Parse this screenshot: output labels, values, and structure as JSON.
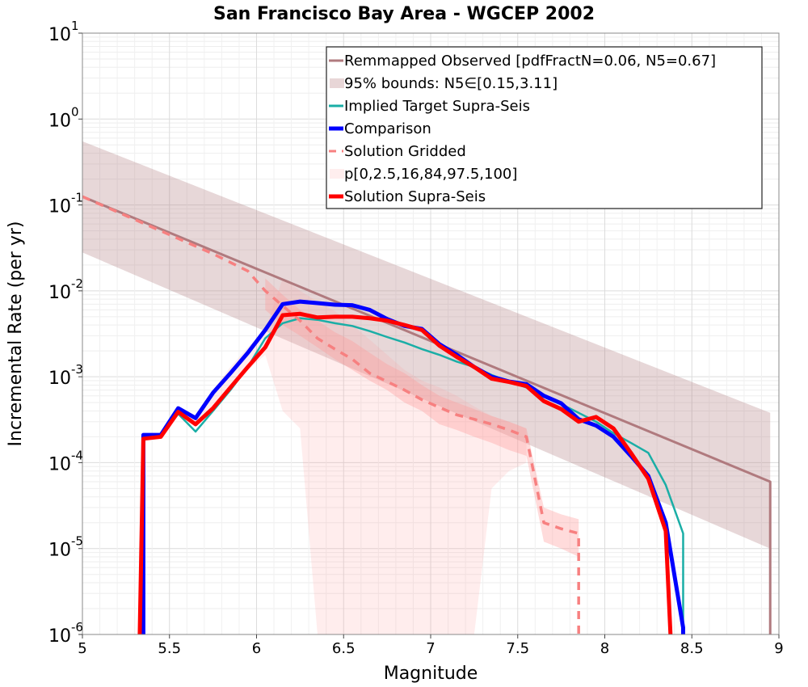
{
  "chart_data": {
    "type": "line",
    "title": "San Francisco Bay Area - WGCEP 2002",
    "xlabel": "Magnitude",
    "ylabel": "Incremental Rate (per yr)",
    "xlim": [
      5,
      9
    ],
    "ylim": [
      1e-06,
      10
    ],
    "yscale": "log",
    "grid": true,
    "legend_position": "top-right",
    "x_ticks": [
      "5",
      "5.5",
      "6",
      "6.5",
      "7",
      "7.5",
      "8",
      "8.5",
      "9"
    ],
    "y_ticks": [
      {
        "base": "10",
        "exp": "1"
      },
      {
        "base": "10",
        "exp": "0"
      },
      {
        "base": "10",
        "exp": "-1"
      },
      {
        "base": "10",
        "exp": "-2"
      },
      {
        "base": "10",
        "exp": "-3"
      },
      {
        "base": "10",
        "exp": "-4"
      },
      {
        "base": "10",
        "exp": "-5"
      },
      {
        "base": "10",
        "exp": "-6"
      }
    ],
    "bands": [
      {
        "name": "95% bounds: N5∈[0.15,3.11]",
        "color": "#b07a7e",
        "opacity": 0.3,
        "x": [
          5.0,
          8.95
        ],
        "lower": [
          0.028,
          1e-05
        ],
        "upper": [
          0.55,
          0.00038
        ]
      },
      {
        "name": "p[0,2.5,16,84,97.5,100]",
        "color": "#ff9999",
        "opacity": 0.18,
        "x": [
          5.35,
          5.45,
          5.55,
          5.65,
          5.75,
          5.85,
          5.95,
          6.05,
          6.15,
          6.25,
          6.35,
          6.45,
          6.55,
          6.65,
          6.75,
          6.85,
          6.95,
          7.05,
          7.15,
          7.25,
          7.35,
          7.45,
          7.55
        ],
        "lower": [
          0.00018,
          0.00019,
          0.00037,
          0.00026,
          0.00042,
          0.0008,
          0.0012,
          0.0018,
          0.0004,
          0.00025,
          1e-06,
          1e-06,
          1e-06,
          1e-06,
          1e-06,
          1e-06,
          1e-06,
          1e-06,
          1e-06,
          1e-06,
          5e-05,
          8e-05,
          0.0001
        ],
        "upper": [
          0.00021,
          0.00021,
          0.00041,
          0.00034,
          0.0007,
          0.0013,
          0.0022,
          0.0035,
          0.014,
          0.01,
          0.0075,
          0.0058,
          0.004,
          0.0027,
          0.0018,
          0.0012,
          0.0009,
          0.00075,
          0.0006,
          0.00045,
          0.00035,
          0.0003,
          0.00025
        ]
      },
      {
        "name": "",
        "color": "#ff9999",
        "opacity": 0.35,
        "x": [
          6.05,
          6.15,
          6.25,
          6.35,
          6.45,
          6.55,
          6.65,
          6.75,
          6.85,
          6.95,
          7.05,
          7.15,
          7.25,
          7.35,
          7.45,
          7.55,
          7.65,
          7.75,
          7.85
        ],
        "lower": [
          0.006,
          0.004,
          0.003,
          0.0022,
          0.0016,
          0.0012,
          0.0009,
          0.0007,
          0.0005,
          0.0004,
          0.00028,
          0.00024,
          0.0002,
          0.00017,
          0.00014,
          0.00012,
          1.2e-05,
          1e-05,
          8e-06
        ],
        "upper": [
          0.014,
          0.009,
          0.006,
          0.0045,
          0.0033,
          0.0026,
          0.0019,
          0.0014,
          0.0011,
          0.0008,
          0.0006,
          0.0005,
          0.00042,
          0.00035,
          0.0003,
          0.00025,
          3e-05,
          2.5e-05,
          2.2e-05
        ]
      }
    ],
    "series": [
      {
        "name": "Remmapped Observed [pdfFractN=0.06, N5=0.67]",
        "color": "#b07a7e",
        "width": 3,
        "dash": "",
        "x": [
          5.0,
          8.95,
          8.95
        ],
        "y": [
          0.125,
          6e-05,
          1e-07
        ]
      },
      {
        "name": "Implied Target Supra-Seis",
        "color": "#1aaea6",
        "width": 2.5,
        "dash": "",
        "x": [
          5.35,
          5.45,
          5.55,
          5.65,
          5.75,
          5.85,
          5.95,
          6.05,
          6.15,
          6.25,
          6.35,
          6.45,
          6.55,
          6.65,
          6.75,
          6.85,
          6.95,
          7.05,
          7.15,
          7.25,
          7.35,
          7.45,
          7.55,
          7.65,
          7.75,
          7.85,
          7.95,
          8.05,
          8.15,
          8.25,
          8.35,
          8.45,
          8.45
        ],
        "y": [
          0.0002,
          0.0002,
          0.00037,
          0.00023,
          0.0004,
          0.0007,
          0.0013,
          0.0028,
          0.0042,
          0.0048,
          0.0046,
          0.0042,
          0.0039,
          0.0034,
          0.0029,
          0.0025,
          0.0021,
          0.0018,
          0.0015,
          0.0013,
          0.00105,
          0.00088,
          0.00075,
          0.0006,
          0.00048,
          0.00038,
          0.0003,
          0.00022,
          0.00017,
          0.00013,
          5.5e-05,
          1.5e-05,
          1e-07
        ]
      },
      {
        "name": "Comparison",
        "color": "#0000ff",
        "width": 5,
        "dash": "",
        "x": [
          5.35,
          5.35,
          5.45,
          5.55,
          5.65,
          5.75,
          5.85,
          5.95,
          6.05,
          6.15,
          6.25,
          6.35,
          6.45,
          6.55,
          6.65,
          6.75,
          6.85,
          6.95,
          7.05,
          7.15,
          7.25,
          7.35,
          7.45,
          7.55,
          7.65,
          7.75,
          7.85,
          7.95,
          8.05,
          8.15,
          8.25,
          8.35,
          8.45,
          8.45
        ],
        "y": [
          1e-07,
          0.00021,
          0.00021,
          0.00043,
          0.00033,
          0.00065,
          0.0011,
          0.0019,
          0.0035,
          0.007,
          0.0075,
          0.0072,
          0.0069,
          0.0068,
          0.006,
          0.0047,
          0.0039,
          0.0036,
          0.0024,
          0.0018,
          0.0013,
          0.001,
          0.00088,
          0.00082,
          0.0006,
          0.00049,
          0.00032,
          0.00027,
          0.0002,
          0.00012,
          7e-05,
          2e-05,
          1.2e-06,
          1e-07
        ]
      },
      {
        "name": "Solution Gridded",
        "color": "#f78080",
        "width": 3.5,
        "dash": "10,8",
        "x": [
          5.0,
          5.25,
          5.5,
          5.75,
          5.95,
          6.05,
          6.15,
          6.25,
          6.35,
          6.45,
          6.55,
          6.65,
          6.75,
          6.85,
          6.95,
          7.05,
          7.15,
          7.25,
          7.35,
          7.45,
          7.55,
          7.65,
          7.75,
          7.85,
          7.85
        ],
        "y": [
          0.125,
          0.075,
          0.045,
          0.027,
          0.017,
          0.01,
          0.0067,
          0.0045,
          0.0028,
          0.0021,
          0.0016,
          0.0011,
          0.00088,
          0.0007,
          0.00054,
          0.00044,
          0.00036,
          0.00032,
          0.00028,
          0.00024,
          0.0002,
          2e-05,
          1.7e-05,
          1.5e-05,
          1e-07
        ]
      },
      {
        "name": "Solution Supra-Seis",
        "color": "#ff0000",
        "width": 5,
        "dash": "",
        "x": [
          5.32,
          5.35,
          5.45,
          5.55,
          5.65,
          5.75,
          5.85,
          5.95,
          6.05,
          6.15,
          6.25,
          6.35,
          6.45,
          6.55,
          6.65,
          6.75,
          6.85,
          6.95,
          7.05,
          7.15,
          7.25,
          7.35,
          7.45,
          7.55,
          7.65,
          7.75,
          7.85,
          7.95,
          8.05,
          8.15,
          8.25,
          8.35,
          8.4
        ],
        "y": [
          1e-07,
          0.00019,
          0.0002,
          0.00039,
          0.00028,
          0.00043,
          0.00075,
          0.0013,
          0.0022,
          0.0052,
          0.0054,
          0.0049,
          0.005,
          0.005,
          0.0048,
          0.0045,
          0.004,
          0.0035,
          0.0023,
          0.0017,
          0.0013,
          0.00095,
          0.00087,
          0.00078,
          0.00052,
          0.00042,
          0.0003,
          0.00034,
          0.00025,
          0.00013,
          6.5e-05,
          1.6e-05,
          1e-07
        ]
      }
    ],
    "legend": [
      {
        "label": "Remmapped Observed [pdfFractN=0.06, N5=0.67]",
        "kind": "line",
        "color": "#b07a7e",
        "width": 3,
        "dash": ""
      },
      {
        "label": "95% bounds: N5∈[0.15,3.11]",
        "kind": "patch",
        "color": "#e8d6d7"
      },
      {
        "label": "Implied Target Supra-Seis",
        "kind": "line",
        "color": "#1aaea6",
        "width": 3,
        "dash": ""
      },
      {
        "label": "Comparison",
        "kind": "line",
        "color": "#0000ff",
        "width": 5,
        "dash": ""
      },
      {
        "label": " Solution Gridded",
        "kind": "line",
        "color": "#f78080",
        "width": 3,
        "dash": "9,7"
      },
      {
        "label": "p[0,2.5,16,84,97.5,100]",
        "kind": "patch",
        "color": "#ffeeee"
      },
      {
        "label": "Solution Supra-Seis",
        "kind": "line",
        "color": "#ff0000",
        "width": 5,
        "dash": ""
      }
    ]
  }
}
